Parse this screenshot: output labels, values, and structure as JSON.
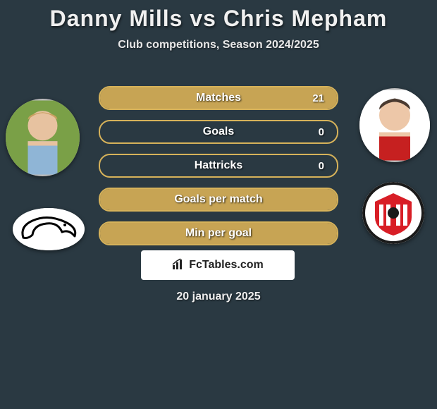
{
  "title": "Danny Mills vs Chris Mepham",
  "subtitle": "Club competitions, Season 2024/2025",
  "date": "20 january 2025",
  "watermark": {
    "text": "FcTables.com"
  },
  "colors": {
    "background": "#2a3942",
    "border": "#d6b25a",
    "fill_right": "#d0aa55",
    "text": "#ffffff"
  },
  "player1": {
    "name": "Danny Mills",
    "club": "Derby County"
  },
  "player2": {
    "name": "Chris Mepham",
    "club": "Sunderland"
  },
  "stats": [
    {
      "label": "Matches",
      "p1": "",
      "p2": "21",
      "fill_right_pct": 100
    },
    {
      "label": "Goals",
      "p1": "",
      "p2": "0",
      "fill_right_pct": 0
    },
    {
      "label": "Hattricks",
      "p1": "",
      "p2": "0",
      "fill_right_pct": 0
    },
    {
      "label": "Goals per match",
      "p1": "",
      "p2": "",
      "fill_right_pct": 100
    },
    {
      "label": "Min per goal",
      "p1": "",
      "p2": "",
      "fill_right_pct": 100
    }
  ]
}
